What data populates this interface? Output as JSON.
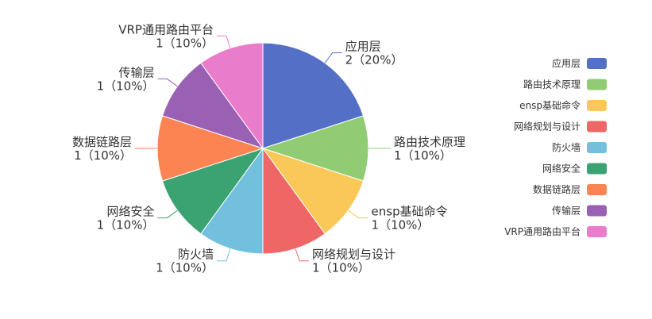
{
  "chart_data": {
    "type": "pie",
    "title": "",
    "slices": [
      {
        "name": "应用层",
        "value": 2,
        "percent": "20%",
        "color": "#5470c6"
      },
      {
        "name": "路由技术原理",
        "value": 1,
        "percent": "10%",
        "color": "#91cc75"
      },
      {
        "name": "ensp基础命令",
        "value": 1,
        "percent": "10%",
        "color": "#fac858"
      },
      {
        "name": "网络规划与设计",
        "value": 1,
        "percent": "10%",
        "color": "#ee6666"
      },
      {
        "name": "防火墙",
        "value": 1,
        "percent": "10%",
        "color": "#73c0de"
      },
      {
        "name": "网络安全",
        "value": 1,
        "percent": "10%",
        "color": "#3ba272"
      },
      {
        "name": "数据链路层",
        "value": 1,
        "percent": "10%",
        "color": "#fc8452"
      },
      {
        "name": "传输层",
        "value": 1,
        "percent": "10%",
        "color": "#9a60b4"
      },
      {
        "name": "VRP通用路由平台",
        "value": 1,
        "percent": "10%",
        "color": "#ea7ccc"
      }
    ],
    "label_format": "{value}（{percent}）",
    "legend_position": "right"
  }
}
